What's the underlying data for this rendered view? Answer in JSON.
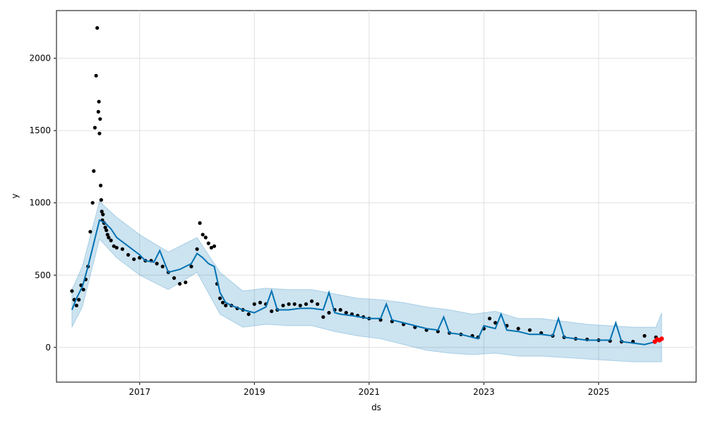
{
  "chart_data": {
    "type": "line",
    "title": "",
    "xlabel": "ds",
    "ylabel": "y",
    "xlim": [
      2015.55,
      2026.7
    ],
    "ylim": [
      -240,
      2330
    ],
    "x_ticks": [
      {
        "value": 2017,
        "label": "2017"
      },
      {
        "value": 2019,
        "label": "2019"
      },
      {
        "value": 2021,
        "label": "2021"
      },
      {
        "value": 2023,
        "label": "2023"
      },
      {
        "value": 2025,
        "label": "2025"
      }
    ],
    "y_ticks": [
      {
        "value": 0,
        "label": "0"
      },
      {
        "value": 500,
        "label": "500"
      },
      {
        "value": 1000,
        "label": "1000"
      },
      {
        "value": 1500,
        "label": "1500"
      },
      {
        "value": 2000,
        "label": "2000"
      }
    ],
    "grid": true,
    "colors": {
      "observed": "#000000",
      "forecast": "#0072B2",
      "interval": "#0072B2",
      "highlight": "#FF0000"
    },
    "series": [
      {
        "kind": "observed-points",
        "x": [
          2015.82,
          2015.86,
          2015.9,
          2015.94,
          2015.98,
          2016.02,
          2016.06,
          2016.1,
          2016.14,
          2016.18,
          2016.2,
          2016.22,
          2016.24,
          2016.26,
          2016.28,
          2016.29,
          2016.3,
          2016.31,
          2016.32,
          2016.33,
          2016.34,
          2016.35,
          2016.36,
          2016.38,
          2016.4,
          2016.42,
          2016.44,
          2016.46,
          2016.5,
          2016.55,
          2016.6,
          2016.7,
          2016.8,
          2016.9,
          2017.0,
          2017.1,
          2017.2,
          2017.3,
          2017.4,
          2017.5,
          2017.6,
          2017.7,
          2017.8,
          2017.9,
          2018.0,
          2018.05,
          2018.1,
          2018.15,
          2018.2,
          2018.25,
          2018.3,
          2018.35,
          2018.4,
          2018.45,
          2018.5,
          2018.6,
          2018.7,
          2018.8,
          2018.9,
          2019.0,
          2019.1,
          2019.2,
          2019.3,
          2019.4,
          2019.5,
          2019.6,
          2019.7,
          2019.8,
          2019.9,
          2020.0,
          2020.1,
          2020.2,
          2020.3,
          2020.4,
          2020.5,
          2020.6,
          2020.7,
          2020.8,
          2020.9,
          2021.0,
          2021.2,
          2021.4,
          2021.6,
          2021.8,
          2022.0,
          2022.2,
          2022.4,
          2022.6,
          2022.8,
          2022.9,
          2023.0,
          2023.1,
          2023.2,
          2023.4,
          2023.6,
          2023.8,
          2024.0,
          2024.2,
          2024.4,
          2024.6,
          2024.8,
          2025.0,
          2025.2,
          2025.4,
          2025.6,
          2025.8,
          2026.0
        ],
        "y": [
          390,
          330,
          290,
          330,
          430,
          400,
          470,
          560,
          800,
          1000,
          1220,
          1520,
          1880,
          2210,
          1630,
          1700,
          1480,
          1580,
          1120,
          1020,
          940,
          880,
          920,
          860,
          830,
          810,
          780,
          760,
          740,
          700,
          690,
          680,
          640,
          610,
          620,
          600,
          600,
          580,
          560,
          520,
          480,
          440,
          450,
          560,
          680,
          860,
          780,
          760,
          720,
          690,
          700,
          440,
          340,
          310,
          290,
          290,
          270,
          260,
          230,
          300,
          310,
          300,
          250,
          260,
          290,
          300,
          300,
          290,
          300,
          320,
          300,
          210,
          240,
          260,
          260,
          240,
          230,
          220,
          210,
          200,
          190,
          180,
          160,
          140,
          120,
          110,
          100,
          90,
          80,
          70,
          130,
          200,
          170,
          150,
          130,
          120,
          100,
          80,
          70,
          60,
          55,
          50,
          45,
          40,
          40,
          80,
          70
        ]
      },
      {
        "kind": "forecast-line",
        "x": [
          2015.82,
          2015.9,
          2016.0,
          2016.1,
          2016.2,
          2016.3,
          2016.4,
          2016.5,
          2016.6,
          2016.8,
          2017.0,
          2017.1,
          2017.25,
          2017.35,
          2017.5,
          2017.7,
          2017.9,
          2018.0,
          2018.1,
          2018.2,
          2018.3,
          2018.4,
          2018.5,
          2018.6,
          2018.8,
          2019.0,
          2019.2,
          2019.3,
          2019.4,
          2019.6,
          2019.8,
          2020.0,
          2020.2,
          2020.3,
          2020.4,
          2020.5,
          2020.7,
          2021.0,
          2021.2,
          2021.3,
          2021.4,
          2021.6,
          2022.0,
          2022.2,
          2022.3,
          2022.4,
          2022.6,
          2022.9,
          2023.0,
          2023.2,
          2023.3,
          2023.4,
          2023.6,
          2023.8,
          2024.0,
          2024.2,
          2024.3,
          2024.4,
          2024.6,
          2024.8,
          2025.0,
          2025.2,
          2025.3,
          2025.4,
          2025.6,
          2025.8,
          2026.0,
          2026.1
        ],
        "y": [
          260,
          340,
          420,
          560,
          720,
          880,
          860,
          820,
          760,
          700,
          640,
          600,
          590,
          670,
          520,
          540,
          580,
          650,
          620,
          580,
          560,
          380,
          310,
          290,
          260,
          240,
          280,
          390,
          260,
          260,
          270,
          270,
          260,
          380,
          240,
          230,
          220,
          200,
          200,
          300,
          190,
          170,
          130,
          120,
          210,
          100,
          90,
          60,
          150,
          130,
          230,
          120,
          110,
          90,
          90,
          80,
          200,
          70,
          60,
          50,
          50,
          50,
          170,
          40,
          30,
          20,
          40,
          60
        ]
      }
    ],
    "interval": {
      "x": [
        2015.82,
        2016.0,
        2016.3,
        2016.6,
        2017.0,
        2017.5,
        2018.0,
        2018.4,
        2018.8,
        2019.2,
        2019.6,
        2020.0,
        2020.4,
        2020.8,
        2021.2,
        2021.6,
        2022.0,
        2022.4,
        2022.8,
        2023.2,
        2023.6,
        2024.0,
        2024.4,
        2024.8,
        2025.2,
        2025.6,
        2026.0,
        2026.1
      ],
      "lower": [
        140,
        280,
        750,
        620,
        500,
        400,
        520,
        230,
        140,
        160,
        150,
        150,
        110,
        80,
        60,
        20,
        -20,
        -40,
        -50,
        -40,
        -60,
        -60,
        -70,
        -80,
        -90,
        -100,
        -100,
        -100
      ],
      "upper": [
        400,
        560,
        1010,
        900,
        780,
        660,
        760,
        520,
        390,
        410,
        400,
        400,
        370,
        340,
        330,
        310,
        280,
        260,
        230,
        250,
        200,
        200,
        180,
        160,
        150,
        140,
        140,
        240
      ]
    },
    "highlight_points": {
      "x": [
        2025.98,
        2026.02,
        2026.06,
        2026.1
      ],
      "y": [
        40,
        55,
        50,
        60
      ]
    }
  }
}
